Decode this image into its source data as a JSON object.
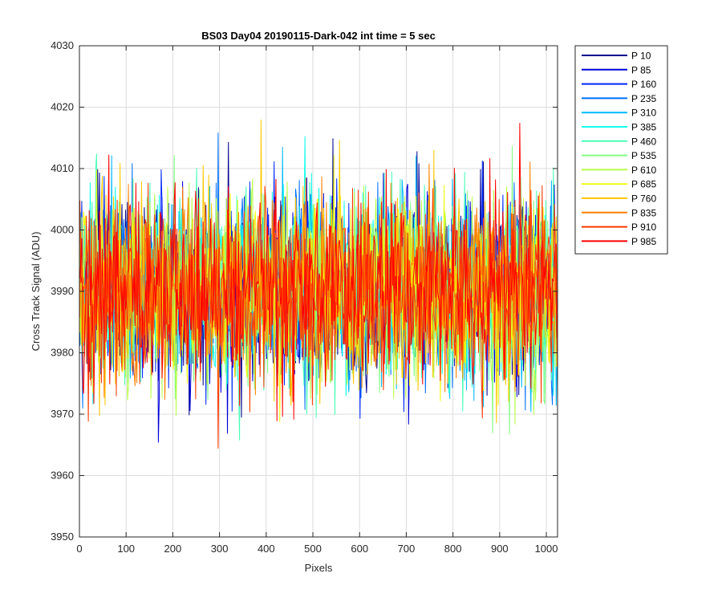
{
  "chart_data": {
    "type": "line",
    "title": "BS03 Day04 20190115-Dark-042 int time = 5 sec",
    "xlabel": "Pixels",
    "ylabel": "Cross Track Signal (ADU)",
    "xlim": [
      0,
      1024
    ],
    "ylim": [
      3950,
      4030
    ],
    "xticks": [
      0,
      100,
      200,
      300,
      400,
      500,
      600,
      700,
      800,
      900,
      1000
    ],
    "yticks": [
      3950,
      3960,
      3970,
      3980,
      3990,
      4000,
      4010,
      4020,
      4030
    ],
    "grid": true,
    "legend_position": "outside-right",
    "series_profile": {
      "x_range": [
        1,
        1024
      ],
      "typical_band": [
        3976,
        4006
      ],
      "center": 3990,
      "observed_min": 3958,
      "observed_max": 4026
    },
    "series": [
      {
        "name": "P 10",
        "color": "#00008f"
      },
      {
        "name": "P 85",
        "color": "#0000d8"
      },
      {
        "name": "P 160",
        "color": "#0028ff"
      },
      {
        "name": "P 235",
        "color": "#0070ff"
      },
      {
        "name": "P 310",
        "color": "#00b8ff"
      },
      {
        "name": "P 385",
        "color": "#10ffef"
      },
      {
        "name": "P 460",
        "color": "#48ffb8"
      },
      {
        "name": "P 535",
        "color": "#80ff80"
      },
      {
        "name": "P 610",
        "color": "#b8ff48"
      },
      {
        "name": "P 685",
        "color": "#efff10"
      },
      {
        "name": "P 760",
        "color": "#ffc800"
      },
      {
        "name": "P 835",
        "color": "#ff8000"
      },
      {
        "name": "P 910",
        "color": "#ff3800"
      },
      {
        "name": "P 985",
        "color": "#ff0000"
      }
    ]
  }
}
